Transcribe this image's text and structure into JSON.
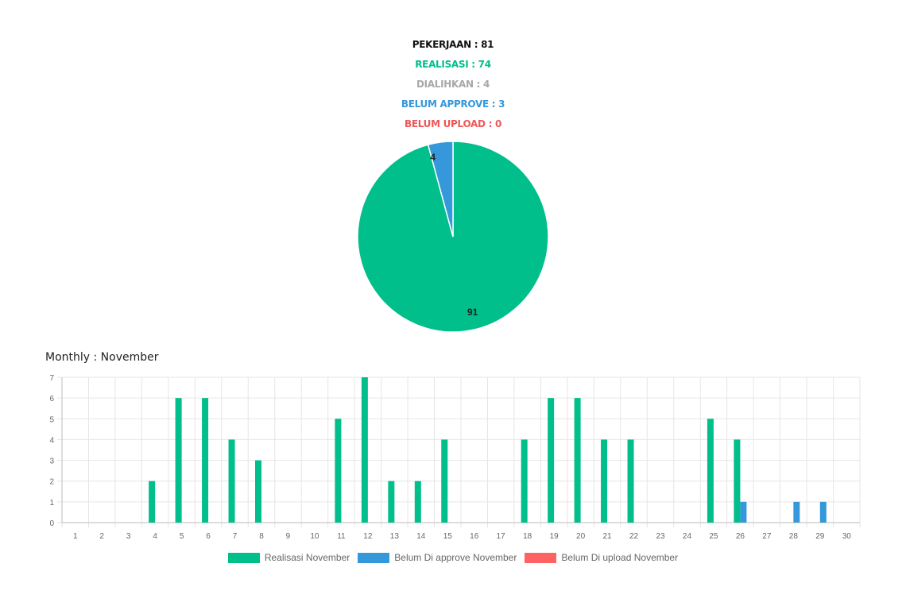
{
  "summary": {
    "pekerjaan": "PEKERJAAN : 81",
    "realisasi": "REALISASI : 74",
    "dialihkan": "DIALIHKAN : 4",
    "belum_approve": "BELUM APPROVE : 3",
    "belum_upload": "BELUM UPLOAD : 0"
  },
  "colors": {
    "black": "#111111",
    "green": "#00bf8a",
    "gray": "#a8a8a8",
    "blue": "#3498db",
    "red": "#f05757"
  },
  "monthly_title": "Monthly : November",
  "chart_data": [
    {
      "type": "pie",
      "slices": [
        {
          "label": "91",
          "value": 91,
          "color": "#00bf8a"
        },
        {
          "label": "4",
          "value": 4,
          "color": "#3498db"
        }
      ]
    },
    {
      "type": "bar",
      "categories": [
        "1",
        "2",
        "3",
        "4",
        "5",
        "6",
        "7",
        "8",
        "9",
        "10",
        "11",
        "12",
        "13",
        "14",
        "15",
        "16",
        "17",
        "18",
        "19",
        "20",
        "21",
        "22",
        "23",
        "24",
        "25",
        "26",
        "27",
        "28",
        "29",
        "30"
      ],
      "ylim": [
        0,
        7
      ],
      "yticks": [
        "0",
        "1",
        "2",
        "3",
        "4",
        "5",
        "6",
        "7"
      ],
      "grid": true,
      "legend_position": "bottom",
      "series": [
        {
          "name": "Realisasi November",
          "color": "#00bf8a",
          "values": [
            0,
            0,
            0,
            2,
            6,
            6,
            4,
            3,
            0,
            0,
            5,
            7,
            2,
            2,
            4,
            0,
            0,
            4,
            6,
            6,
            4,
            4,
            0,
            0,
            5,
            4,
            0,
            0,
            0,
            0
          ]
        },
        {
          "name": "Belum Di approve November",
          "color": "#3498db",
          "values": [
            0,
            0,
            0,
            0,
            0,
            0,
            0,
            0,
            0,
            0,
            0,
            0,
            0,
            0,
            0,
            0,
            0,
            0,
            0,
            0,
            0,
            0,
            0,
            0,
            0,
            1,
            0,
            1,
            1,
            0
          ]
        },
        {
          "name": "Belum Di upload November",
          "color": "#ff6262",
          "values": [
            0,
            0,
            0,
            0,
            0,
            0,
            0,
            0,
            0,
            0,
            0,
            0,
            0,
            0,
            0,
            0,
            0,
            0,
            0,
            0,
            0,
            0,
            0,
            0,
            0,
            0,
            0,
            0,
            0,
            0
          ]
        }
      ]
    }
  ]
}
